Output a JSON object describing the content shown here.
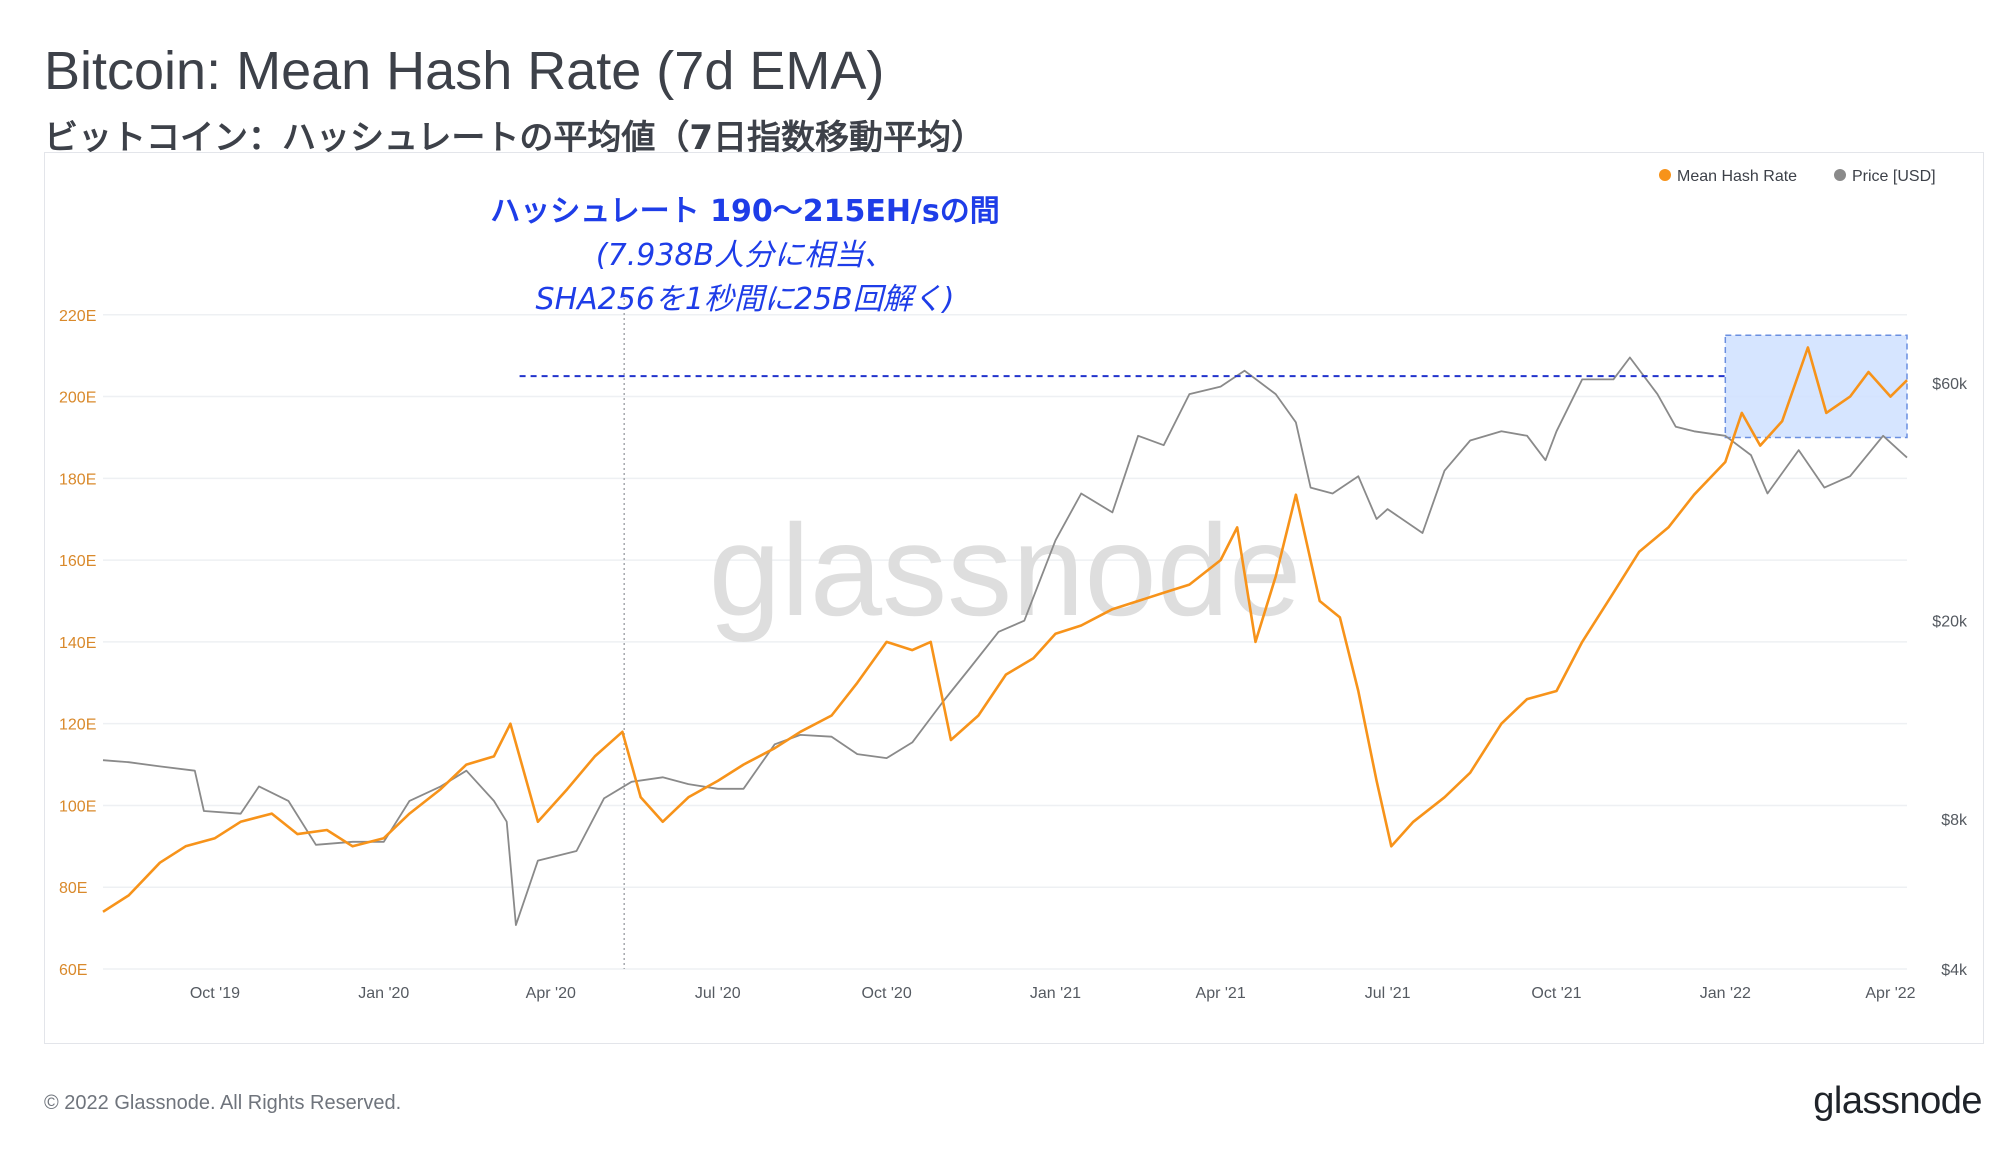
{
  "header": {
    "title": "Bitcoin: Mean Hash Rate (7d EMA)",
    "subtitle": "ビットコイン：ハッシュレートの平均値（7日指数移動平均）"
  },
  "footer": {
    "copyright": "© 2022 Glassnode. All Rights Reserved.",
    "brand": "glassnode"
  },
  "colors": {
    "hash_rate": "#f7931a",
    "price": "#8a8a8a",
    "annotation_text": "#1e3de8",
    "annotation_line": "#2233cc",
    "highlight_fill": "#cfe0ff",
    "highlight_border": "#6a8fe0",
    "grid": "#eef0f3",
    "axis_text": "#d9892b",
    "right_axis_text": "#555a61",
    "x_axis_text": "#555a61"
  },
  "chart_data": {
    "type": "line",
    "watermark": "glassnode",
    "legend": {
      "placement": "top-right",
      "items": [
        {
          "name": "Mean Hash Rate",
          "color": "#f7931a"
        },
        {
          "name": "Price [USD]",
          "color": "#8a8a8a"
        }
      ]
    },
    "x_range": [
      "2019-08-01",
      "2022-04-10"
    ],
    "x_ticks": [
      {
        "date": "2019-10-01",
        "label": "Oct '19"
      },
      {
        "date": "2020-01-01",
        "label": "Jan '20"
      },
      {
        "date": "2020-04-01",
        "label": "Apr '20"
      },
      {
        "date": "2020-07-01",
        "label": "Jul '20"
      },
      {
        "date": "2020-10-01",
        "label": "Oct '20"
      },
      {
        "date": "2021-01-01",
        "label": "Jan '21"
      },
      {
        "date": "2021-04-01",
        "label": "Apr '21"
      },
      {
        "date": "2021-07-01",
        "label": "Jul '21"
      },
      {
        "date": "2021-10-01",
        "label": "Oct '21"
      },
      {
        "date": "2022-01-01",
        "label": "Jan '22"
      },
      {
        "date": "2022-04-01",
        "label": "Apr '22"
      }
    ],
    "y_left": {
      "unit": "EH/s",
      "range": [
        60,
        240
      ],
      "ticks": [
        {
          "value": 60,
          "label": "60E"
        },
        {
          "value": 80,
          "label": "80E"
        },
        {
          "value": 100,
          "label": "100E"
        },
        {
          "value": 120,
          "label": "120E"
        },
        {
          "value": 140,
          "label": "140E"
        },
        {
          "value": 160,
          "label": "160E"
        },
        {
          "value": 180,
          "label": "180E"
        },
        {
          "value": 200,
          "label": "200E"
        },
        {
          "value": 220,
          "label": "220E"
        }
      ]
    },
    "y_right": {
      "scale": "log",
      "range": [
        4000,
        120000
      ],
      "ticks": [
        {
          "value": 4000,
          "label": "$4k"
        },
        {
          "value": 8000,
          "label": "$8k"
        },
        {
          "value": 20000,
          "label": "$20k"
        },
        {
          "value": 60000,
          "label": "$60k"
        }
      ]
    },
    "series": [
      {
        "name": "Mean Hash Rate",
        "axis": "left",
        "points": [
          [
            "2019-08-01",
            74
          ],
          [
            "2019-08-15",
            78
          ],
          [
            "2019-09-01",
            86
          ],
          [
            "2019-09-15",
            90
          ],
          [
            "2019-10-01",
            92
          ],
          [
            "2019-10-15",
            96
          ],
          [
            "2019-11-01",
            98
          ],
          [
            "2019-11-15",
            93
          ],
          [
            "2019-12-01",
            94
          ],
          [
            "2019-12-15",
            90
          ],
          [
            "2020-01-01",
            92
          ],
          [
            "2020-01-15",
            98
          ],
          [
            "2020-02-01",
            104
          ],
          [
            "2020-02-15",
            110
          ],
          [
            "2020-03-01",
            112
          ],
          [
            "2020-03-10",
            120
          ],
          [
            "2020-03-25",
            96
          ],
          [
            "2020-04-10",
            104
          ],
          [
            "2020-04-25",
            112
          ],
          [
            "2020-05-10",
            118
          ],
          [
            "2020-05-20",
            102
          ],
          [
            "2020-06-01",
            96
          ],
          [
            "2020-06-15",
            102
          ],
          [
            "2020-07-01",
            106
          ],
          [
            "2020-07-15",
            110
          ],
          [
            "2020-08-01",
            114
          ],
          [
            "2020-08-15",
            118
          ],
          [
            "2020-09-01",
            122
          ],
          [
            "2020-09-15",
            130
          ],
          [
            "2020-10-01",
            140
          ],
          [
            "2020-10-15",
            138
          ],
          [
            "2020-10-25",
            140
          ],
          [
            "2020-11-05",
            116
          ],
          [
            "2020-11-20",
            122
          ],
          [
            "2020-12-05",
            132
          ],
          [
            "2020-12-20",
            136
          ],
          [
            "2021-01-01",
            142
          ],
          [
            "2021-01-15",
            144
          ],
          [
            "2021-02-01",
            148
          ],
          [
            "2021-02-15",
            150
          ],
          [
            "2021-03-01",
            152
          ],
          [
            "2021-03-15",
            154
          ],
          [
            "2021-04-01",
            160
          ],
          [
            "2021-04-10",
            168
          ],
          [
            "2021-04-20",
            140
          ],
          [
            "2021-05-01",
            156
          ],
          [
            "2021-05-12",
            176
          ],
          [
            "2021-05-25",
            150
          ],
          [
            "2021-06-05",
            146
          ],
          [
            "2021-06-15",
            128
          ],
          [
            "2021-06-25",
            106
          ],
          [
            "2021-07-03",
            90
          ],
          [
            "2021-07-15",
            96
          ],
          [
            "2021-08-01",
            102
          ],
          [
            "2021-08-15",
            108
          ],
          [
            "2021-09-01",
            120
          ],
          [
            "2021-09-15",
            126
          ],
          [
            "2021-10-01",
            128
          ],
          [
            "2021-10-15",
            140
          ],
          [
            "2021-11-01",
            152
          ],
          [
            "2021-11-15",
            162
          ],
          [
            "2021-12-01",
            168
          ],
          [
            "2021-12-15",
            176
          ],
          [
            "2022-01-01",
            184
          ],
          [
            "2022-01-10",
            196
          ],
          [
            "2022-01-20",
            188
          ],
          [
            "2022-02-01",
            194
          ],
          [
            "2022-02-15",
            212
          ],
          [
            "2022-02-25",
            196
          ],
          [
            "2022-03-10",
            200
          ],
          [
            "2022-03-20",
            206
          ],
          [
            "2022-04-01",
            200
          ],
          [
            "2022-04-10",
            204
          ]
        ]
      },
      {
        "name": "Price [USD]",
        "axis": "right",
        "points": [
          [
            "2019-08-01",
            10500
          ],
          [
            "2019-08-15",
            10400
          ],
          [
            "2019-09-01",
            10200
          ],
          [
            "2019-09-20",
            10000
          ],
          [
            "2019-09-25",
            8300
          ],
          [
            "2019-10-15",
            8200
          ],
          [
            "2019-10-25",
            9300
          ],
          [
            "2019-11-10",
            8700
          ],
          [
            "2019-11-25",
            7100
          ],
          [
            "2019-12-15",
            7200
          ],
          [
            "2020-01-01",
            7200
          ],
          [
            "2020-01-15",
            8700
          ],
          [
            "2020-02-01",
            9300
          ],
          [
            "2020-02-15",
            10000
          ],
          [
            "2020-03-01",
            8700
          ],
          [
            "2020-03-08",
            7900
          ],
          [
            "2020-03-13",
            4900
          ],
          [
            "2020-03-25",
            6600
          ],
          [
            "2020-04-15",
            6900
          ],
          [
            "2020-04-30",
            8800
          ],
          [
            "2020-05-15",
            9500
          ],
          [
            "2020-06-01",
            9700
          ],
          [
            "2020-06-15",
            9400
          ],
          [
            "2020-07-01",
            9200
          ],
          [
            "2020-07-15",
            9200
          ],
          [
            "2020-08-01",
            11300
          ],
          [
            "2020-08-15",
            11800
          ],
          [
            "2020-09-01",
            11700
          ],
          [
            "2020-09-15",
            10800
          ],
          [
            "2020-10-01",
            10600
          ],
          [
            "2020-10-15",
            11400
          ],
          [
            "2020-11-01",
            13800
          ],
          [
            "2020-11-15",
            16000
          ],
          [
            "2020-12-01",
            19000
          ],
          [
            "2020-12-15",
            20000
          ],
          [
            "2021-01-01",
            29000
          ],
          [
            "2021-01-15",
            36000
          ],
          [
            "2021-02-01",
            33000
          ],
          [
            "2021-02-15",
            47000
          ],
          [
            "2021-03-01",
            45000
          ],
          [
            "2021-03-15",
            57000
          ],
          [
            "2021-04-01",
            59000
          ],
          [
            "2021-04-14",
            63500
          ],
          [
            "2021-05-01",
            57000
          ],
          [
            "2021-05-12",
            50000
          ],
          [
            "2021-05-20",
            37000
          ],
          [
            "2021-06-01",
            36000
          ],
          [
            "2021-06-15",
            39000
          ],
          [
            "2021-06-25",
            32000
          ],
          [
            "2021-07-01",
            33500
          ],
          [
            "2021-07-20",
            30000
          ],
          [
            "2021-08-01",
            40000
          ],
          [
            "2021-08-15",
            46000
          ],
          [
            "2021-09-01",
            48000
          ],
          [
            "2021-09-15",
            47000
          ],
          [
            "2021-09-25",
            42000
          ],
          [
            "2021-10-01",
            48000
          ],
          [
            "2021-10-15",
            61000
          ],
          [
            "2021-11-01",
            61000
          ],
          [
            "2021-11-10",
            67500
          ],
          [
            "2021-11-25",
            57000
          ],
          [
            "2021-12-05",
            49000
          ],
          [
            "2021-12-15",
            48000
          ],
          [
            "2022-01-01",
            47000
          ],
          [
            "2022-01-15",
            43000
          ],
          [
            "2022-01-24",
            36000
          ],
          [
            "2022-02-10",
            44000
          ],
          [
            "2022-02-24",
            37000
          ],
          [
            "2022-03-10",
            39000
          ],
          [
            "2022-03-28",
            47000
          ],
          [
            "2022-04-10",
            42500
          ]
        ]
      }
    ],
    "vertical_marker_date": "2020-05-11",
    "annotation": {
      "line1": "ハッシュレート 190〜215EH/sの間",
      "line2": "(7.938B人分に相当、",
      "line3": "SHA256を1秒間に25B回解く)",
      "reference_value": 205,
      "reference_start": "2020-03-15",
      "highlight_range": {
        "x": [
          "2022-01-01",
          "2022-04-10"
        ],
        "y": [
          190,
          215
        ]
      }
    }
  }
}
